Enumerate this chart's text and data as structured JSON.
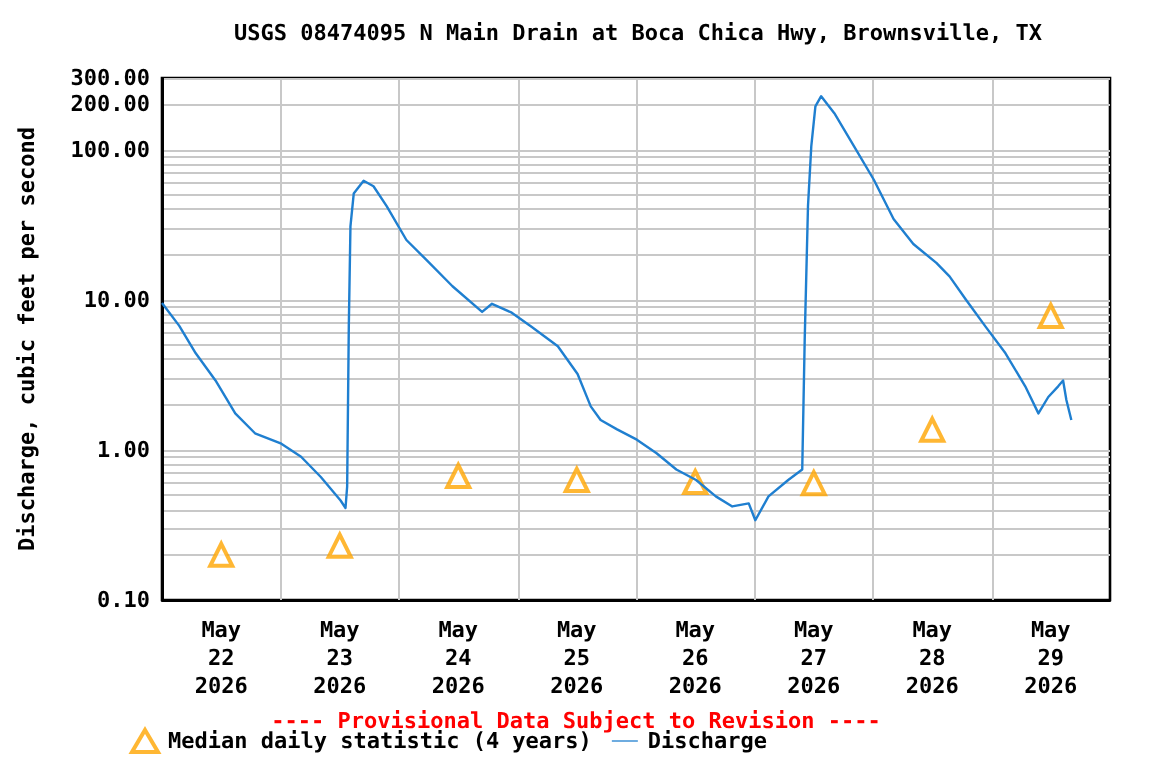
{
  "chart_data": {
    "type": "line",
    "title": "USGS 08474095 N Main Drain at Boca Chica Hwy, Brownsville, TX",
    "ylabel": "Discharge, cubic feet per second",
    "annotations": [
      "---- Provisional Data Subject to Revision ----"
    ],
    "log": "y",
    "grid": true,
    "legend": "bottom",
    "xlim": [
      "2026-05-22T00:00",
      "2026-05-30T00:00"
    ],
    "xticks": [
      {
        "value": "2026-05-22T12:00",
        "label": "May\n22\n2026"
      },
      {
        "value": "2026-05-23T12:00",
        "label": "May\n23\n2026"
      },
      {
        "value": "2026-05-24T12:00",
        "label": "May\n24\n2026"
      },
      {
        "value": "2026-05-25T12:00",
        "label": "May\n25\n2026"
      },
      {
        "value": "2026-05-26T12:00",
        "label": "May\n26\n2026"
      },
      {
        "value": "2026-05-27T12:00",
        "label": "May\n27\n2026"
      },
      {
        "value": "2026-05-28T12:00",
        "label": "May\n28\n2026"
      },
      {
        "value": "2026-05-29T12:00",
        "label": "May\n29\n2026"
      },
      {
        "value": "2026-05-23T00:00",
        "label": null
      },
      {
        "value": "2026-05-24T00:00",
        "label": null
      },
      {
        "value": "2026-05-25T00:00",
        "label": null
      },
      {
        "value": "2026-05-26T00:00",
        "label": null
      },
      {
        "value": "2026-05-27T00:00",
        "label": null
      },
      {
        "value": "2026-05-28T00:00",
        "label": null
      },
      {
        "value": "2026-05-29T00:00",
        "label": null
      }
    ],
    "ylim": [
      0.1,
      300
    ],
    "yticks": [
      {
        "value": 0.1,
        "label": "0.10"
      },
      {
        "value": 0.2,
        "label": null
      },
      {
        "value": 0.3,
        "label": null
      },
      {
        "value": 0.4,
        "label": null
      },
      {
        "value": 0.5,
        "label": null
      },
      {
        "value": 0.6,
        "label": null
      },
      {
        "value": 0.7,
        "label": null
      },
      {
        "value": 0.8,
        "label": null
      },
      {
        "value": 0.9,
        "label": null
      },
      {
        "value": 1,
        "label": "1.00"
      },
      {
        "value": 2,
        "label": null
      },
      {
        "value": 3,
        "label": null
      },
      {
        "value": 4,
        "label": null
      },
      {
        "value": 5,
        "label": null
      },
      {
        "value": 6,
        "label": null
      },
      {
        "value": 7,
        "label": null
      },
      {
        "value": 8,
        "label": null
      },
      {
        "value": 9,
        "label": null
      },
      {
        "value": 10,
        "label": "10.00"
      },
      {
        "value": 20,
        "label": null
      },
      {
        "value": 30,
        "label": null
      },
      {
        "value": 40,
        "label": null
      },
      {
        "value": 50,
        "label": null
      },
      {
        "value": 60,
        "label": null
      },
      {
        "value": 70,
        "label": null
      },
      {
        "value": 80,
        "label": null
      },
      {
        "value": 90,
        "label": null
      },
      {
        "value": 100,
        "label": "100.00"
      },
      {
        "value": 200,
        "label": "200.00"
      },
      {
        "value": 300,
        "label": "300.00"
      }
    ],
    "series": [
      {
        "name": "Median daily statistic (4 years)",
        "type": "scatter",
        "marker": "triangle",
        "color": "#ffa500",
        "x": [
          "2026-05-22T12:00",
          "2026-05-23T12:00",
          "2026-05-24T12:00",
          "2026-05-25T12:00",
          "2026-05-26T12:00",
          "2026-05-27T12:00",
          "2026-05-28T12:00",
          "2026-05-29T12:00"
        ],
        "values": [
          0.2,
          0.23,
          0.67,
          0.63,
          0.61,
          0.6,
          1.36,
          7.8
        ]
      },
      {
        "name": "Discharge",
        "marker": "none",
        "line_style": "solid",
        "color": "#1f7fd0",
        "x": [
          "2026-05-22T00:00",
          "2026-05-22T03:30",
          "2026-05-22T06:50",
          "2026-05-22T10:50",
          "2026-05-22T14:50",
          "2026-05-22T18:50",
          "2026-05-23T00:10",
          "2026-05-23T04:10",
          "2026-05-23T08:10",
          "2026-05-23T12:10",
          "2026-05-23T13:10",
          "2026-05-23T13:30",
          "2026-05-23T13:50",
          "2026-05-23T14:10",
          "2026-05-23T14:50",
          "2026-05-23T16:50",
          "2026-05-23T18:50",
          "2026-05-23T21:30",
          "2026-05-24T01:30",
          "2026-05-24T05:30",
          "2026-05-24T10:50",
          "2026-05-24T16:50",
          "2026-05-24T18:50",
          "2026-05-24T22:50",
          "2026-05-25T02:50",
          "2026-05-25T08:10",
          "2026-05-25T12:10",
          "2026-05-25T14:50",
          "2026-05-25T16:50",
          "2026-05-25T20:10",
          "2026-05-26T00:10",
          "2026-05-26T04:10",
          "2026-05-26T08:10",
          "2026-05-26T12:10",
          "2026-05-26T16:10",
          "2026-05-26T19:30",
          "2026-05-26T22:50",
          "2026-05-27T00:10",
          "2026-05-27T02:50",
          "2026-05-27T06:50",
          "2026-05-27T09:40",
          "2026-05-27T10:10",
          "2026-05-27T10:50",
          "2026-05-27T11:30",
          "2026-05-27T12:20",
          "2026-05-27T13:30",
          "2026-05-27T16:10",
          "2026-05-27T20:10",
          "2026-05-28T00:10",
          "2026-05-28T04:10",
          "2026-05-28T08:10",
          "2026-05-28T12:50",
          "2026-05-28T15:30",
          "2026-05-28T18:50",
          "2026-05-28T22:50",
          "2026-05-29T02:50",
          "2026-05-29T06:50",
          "2026-05-29T09:30",
          "2026-05-29T11:30",
          "2026-05-29T13:30",
          "2026-05-29T14:30",
          "2026-05-29T15:10",
          "2026-05-29T16:10"
        ],
        "values": [
          9.5,
          6.7,
          4.4,
          2.9,
          1.75,
          1.29,
          1.1,
          0.9,
          0.66,
          0.46,
          0.41,
          0.57,
          6.6,
          30.8,
          51,
          62,
          57,
          42,
          25,
          18.5,
          12.3,
          8.3,
          9.4,
          8.2,
          6.6,
          4.9,
          3.2,
          1.95,
          1.58,
          1.37,
          1.17,
          0.95,
          0.74,
          0.63,
          0.49,
          0.42,
          0.44,
          0.34,
          0.49,
          0.63,
          0.74,
          5.4,
          42,
          105,
          194,
          227,
          175,
          105,
          63,
          34.5,
          23.5,
          17.6,
          14.3,
          10,
          6.6,
          4.4,
          2.65,
          1.75,
          2.25,
          2.65,
          2.9,
          2.15,
          1.58
        ]
      }
    ]
  }
}
